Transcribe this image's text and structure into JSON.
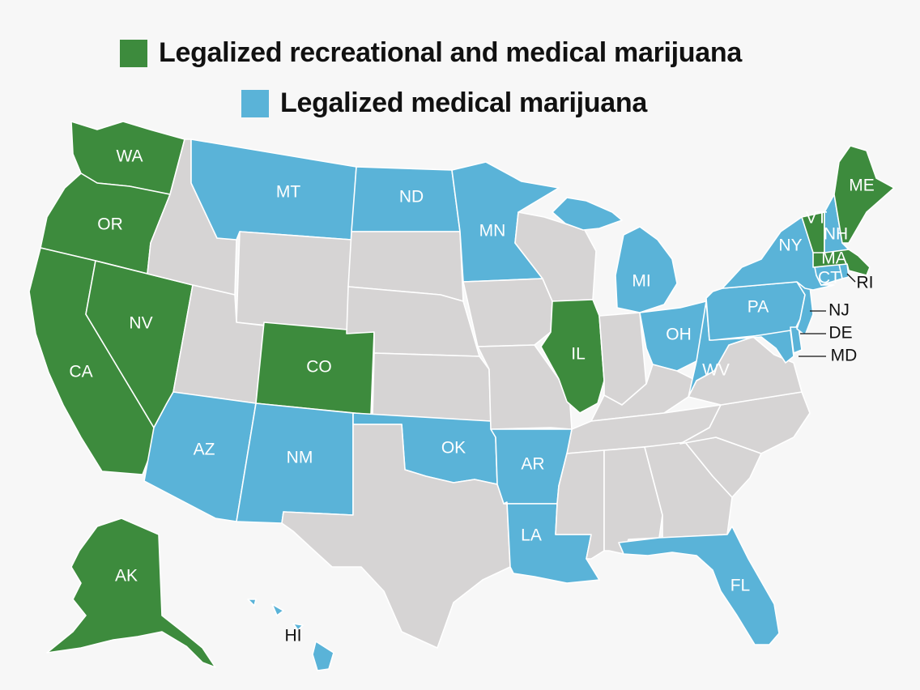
{
  "legend": {
    "recreational": {
      "label": "Legalized recreational and medical marijuana",
      "color": "#3d8b3d"
    },
    "medical": {
      "label": "Legalized medical marijuana",
      "color": "#5ab3d8"
    }
  },
  "colors": {
    "none": "#d6d4d4",
    "border": "#ffffff",
    "label_dark": "#111111",
    "label_light": "#ffffff"
  },
  "states": [
    {
      "id": "WA",
      "status": "recreational"
    },
    {
      "id": "OR",
      "status": "recreational"
    },
    {
      "id": "CA",
      "status": "recreational"
    },
    {
      "id": "NV",
      "status": "recreational"
    },
    {
      "id": "CO",
      "status": "recreational"
    },
    {
      "id": "IL",
      "status": "recreational"
    },
    {
      "id": "ME",
      "status": "recreational"
    },
    {
      "id": "VT",
      "status": "recreational"
    },
    {
      "id": "MA",
      "status": "recreational"
    },
    {
      "id": "AK",
      "status": "recreational"
    },
    {
      "id": "MT",
      "status": "medical"
    },
    {
      "id": "ND",
      "status": "medical"
    },
    {
      "id": "MN",
      "status": "medical"
    },
    {
      "id": "MI",
      "status": "medical"
    },
    {
      "id": "NY",
      "status": "medical"
    },
    {
      "id": "NH",
      "status": "medical"
    },
    {
      "id": "CT",
      "status": "medical"
    },
    {
      "id": "RI",
      "status": "medical"
    },
    {
      "id": "PA",
      "status": "medical"
    },
    {
      "id": "NJ",
      "status": "medical"
    },
    {
      "id": "DE",
      "status": "medical"
    },
    {
      "id": "MD",
      "status": "medical"
    },
    {
      "id": "OH",
      "status": "medical"
    },
    {
      "id": "WV",
      "status": "medical"
    },
    {
      "id": "AZ",
      "status": "medical"
    },
    {
      "id": "NM",
      "status": "medical"
    },
    {
      "id": "OK",
      "status": "medical"
    },
    {
      "id": "AR",
      "status": "medical"
    },
    {
      "id": "LA",
      "status": "medical"
    },
    {
      "id": "FL",
      "status": "medical"
    },
    {
      "id": "HI",
      "status": "medical"
    },
    {
      "id": "ID",
      "status": "none"
    },
    {
      "id": "WY",
      "status": "none"
    },
    {
      "id": "UT",
      "status": "none"
    },
    {
      "id": "SD",
      "status": "none"
    },
    {
      "id": "NE",
      "status": "none"
    },
    {
      "id": "KS",
      "status": "none"
    },
    {
      "id": "TX",
      "status": "none"
    },
    {
      "id": "IA",
      "status": "none"
    },
    {
      "id": "MO",
      "status": "none"
    },
    {
      "id": "WI",
      "status": "none"
    },
    {
      "id": "IN",
      "status": "none"
    },
    {
      "id": "KY",
      "status": "none"
    },
    {
      "id": "TN",
      "status": "none"
    },
    {
      "id": "MS",
      "status": "none"
    },
    {
      "id": "AL",
      "status": "none"
    },
    {
      "id": "GA",
      "status": "none"
    },
    {
      "id": "SC",
      "status": "none"
    },
    {
      "id": "NC",
      "status": "none"
    },
    {
      "id": "VA",
      "status": "none"
    }
  ]
}
